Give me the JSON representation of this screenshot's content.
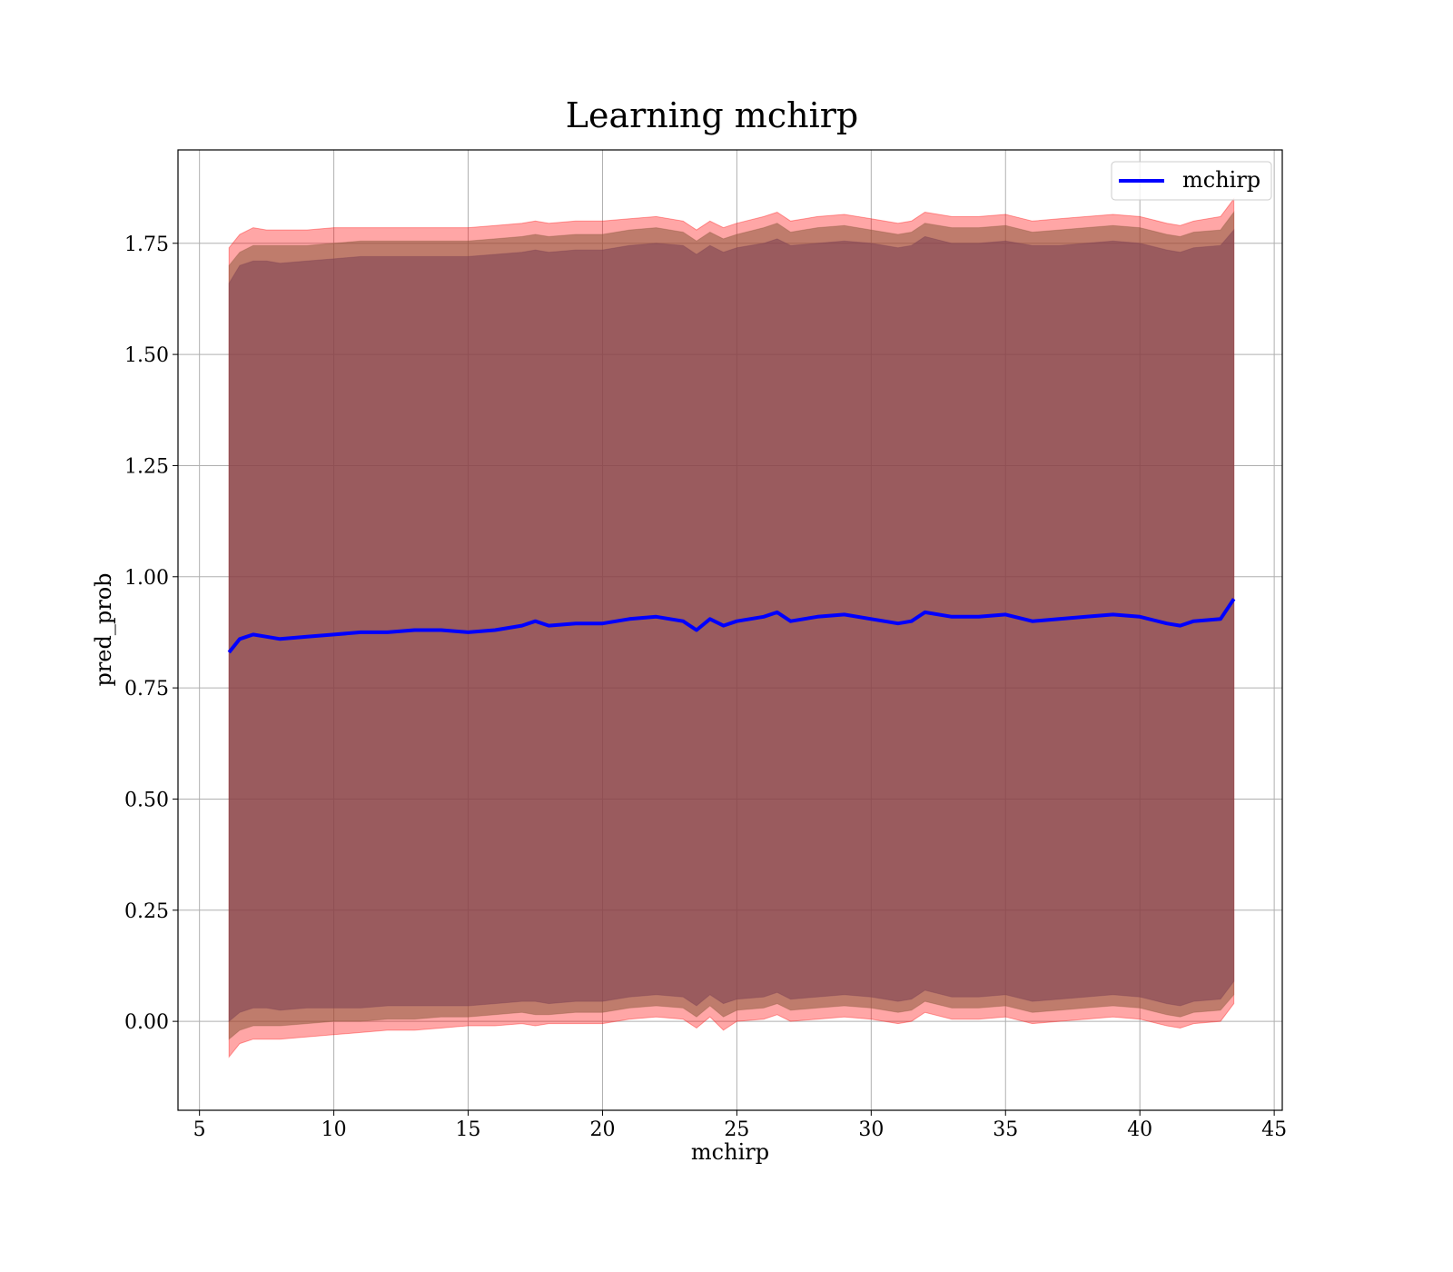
{
  "chart_data": {
    "type": "line",
    "title": "Learning mchirp",
    "xlabel": "mchirp",
    "ylabel": "pred_prob",
    "xlim": [
      4.2,
      45.3
    ],
    "ylim": [
      -0.2,
      1.96
    ],
    "xticks": [
      5,
      10,
      15,
      20,
      25,
      30,
      35,
      40,
      45
    ],
    "xtick_labels": [
      "5",
      "10",
      "15",
      "20",
      "25",
      "30",
      "35",
      "40",
      "45"
    ],
    "yticks": [
      0.0,
      0.25,
      0.5,
      0.75,
      1.0,
      1.25,
      1.5,
      1.75
    ],
    "ytick_labels": [
      "0.00",
      "0.25",
      "0.50",
      "0.75",
      "1.00",
      "1.25",
      "1.50",
      "1.75"
    ],
    "grid": true,
    "legend": {
      "position": "top-right",
      "entries": [
        "mchirp"
      ]
    },
    "colors": {
      "line": "#0000ff",
      "outer_band": "#ff0000",
      "inner_band": "#8b5a3c",
      "core_band": "#7b3f54"
    },
    "x": [
      6.1,
      6.5,
      7.0,
      7.5,
      8.0,
      9.0,
      10.0,
      11.0,
      12.0,
      13.0,
      14.0,
      15.0,
      16.0,
      17.0,
      17.5,
      18.0,
      19.0,
      20.0,
      21.0,
      22.0,
      23.0,
      23.5,
      24.0,
      24.5,
      25.0,
      26.0,
      26.5,
      27.0,
      28.0,
      29.0,
      30.0,
      31.0,
      31.5,
      32.0,
      33.0,
      34.0,
      35.0,
      36.0,
      37.0,
      38.0,
      39.0,
      40.0,
      41.0,
      41.5,
      42.0,
      43.0,
      43.5
    ],
    "series": [
      {
        "name": "mchirp",
        "values": [
          0.83,
          0.86,
          0.87,
          0.865,
          0.86,
          0.865,
          0.87,
          0.875,
          0.875,
          0.88,
          0.88,
          0.875,
          0.88,
          0.89,
          0.9,
          0.89,
          0.895,
          0.895,
          0.905,
          0.91,
          0.9,
          0.88,
          0.905,
          0.89,
          0.9,
          0.91,
          0.92,
          0.9,
          0.91,
          0.915,
          0.905,
          0.895,
          0.9,
          0.92,
          0.91,
          0.91,
          0.915,
          0.9,
          0.905,
          0.91,
          0.915,
          0.91,
          0.895,
          0.89,
          0.9,
          0.905,
          0.95
        ]
      }
    ],
    "bands": [
      {
        "lower": [
          -0.08,
          -0.05,
          -0.04,
          -0.04,
          -0.04,
          -0.035,
          -0.03,
          -0.025,
          -0.02,
          -0.02,
          -0.015,
          -0.01,
          -0.01,
          -0.005,
          -0.01,
          -0.005,
          -0.005,
          -0.005,
          0.005,
          0.01,
          0.005,
          -0.015,
          0.01,
          -0.02,
          0.0,
          0.005,
          0.015,
          0.0,
          0.005,
          0.01,
          0.005,
          -0.005,
          0.0,
          0.02,
          0.005,
          0.005,
          0.01,
          -0.005,
          0.0,
          0.005,
          0.01,
          0.005,
          -0.01,
          -0.015,
          -0.005,
          0.0,
          0.04
        ],
        "upper": [
          1.74,
          1.77,
          1.785,
          1.78,
          1.78,
          1.78,
          1.785,
          1.785,
          1.785,
          1.785,
          1.785,
          1.785,
          1.79,
          1.795,
          1.8,
          1.795,
          1.8,
          1.8,
          1.805,
          1.81,
          1.8,
          1.78,
          1.8,
          1.785,
          1.795,
          1.81,
          1.82,
          1.8,
          1.81,
          1.815,
          1.805,
          1.795,
          1.8,
          1.82,
          1.81,
          1.81,
          1.815,
          1.8,
          1.805,
          1.81,
          1.815,
          1.81,
          1.795,
          1.79,
          1.8,
          1.81,
          1.85
        ]
      },
      {
        "lower": [
          -0.04,
          -0.02,
          -0.01,
          -0.01,
          -0.01,
          -0.005,
          0.0,
          0.0,
          0.005,
          0.005,
          0.01,
          0.01,
          0.015,
          0.02,
          0.015,
          0.015,
          0.02,
          0.02,
          0.03,
          0.035,
          0.03,
          0.01,
          0.035,
          0.01,
          0.025,
          0.03,
          0.04,
          0.025,
          0.03,
          0.035,
          0.03,
          0.02,
          0.025,
          0.045,
          0.03,
          0.03,
          0.035,
          0.02,
          0.025,
          0.03,
          0.035,
          0.03,
          0.015,
          0.01,
          0.02,
          0.025,
          0.06
        ],
        "upper": [
          1.7,
          1.73,
          1.745,
          1.745,
          1.745,
          1.745,
          1.75,
          1.755,
          1.755,
          1.755,
          1.755,
          1.755,
          1.76,
          1.765,
          1.77,
          1.765,
          1.77,
          1.77,
          1.78,
          1.785,
          1.775,
          1.755,
          1.775,
          1.76,
          1.77,
          1.785,
          1.795,
          1.775,
          1.785,
          1.79,
          1.78,
          1.77,
          1.775,
          1.795,
          1.785,
          1.785,
          1.79,
          1.775,
          1.78,
          1.785,
          1.79,
          1.785,
          1.77,
          1.765,
          1.775,
          1.78,
          1.82
        ]
      },
      {
        "lower": [
          0.0,
          0.02,
          0.03,
          0.03,
          0.025,
          0.03,
          0.03,
          0.03,
          0.035,
          0.035,
          0.035,
          0.035,
          0.04,
          0.045,
          0.045,
          0.04,
          0.045,
          0.045,
          0.055,
          0.06,
          0.055,
          0.035,
          0.06,
          0.04,
          0.05,
          0.055,
          0.065,
          0.05,
          0.055,
          0.06,
          0.055,
          0.045,
          0.05,
          0.07,
          0.055,
          0.055,
          0.06,
          0.045,
          0.05,
          0.055,
          0.06,
          0.055,
          0.04,
          0.035,
          0.045,
          0.05,
          0.09
        ],
        "upper": [
          1.66,
          1.7,
          1.71,
          1.71,
          1.705,
          1.71,
          1.715,
          1.72,
          1.72,
          1.72,
          1.72,
          1.72,
          1.725,
          1.73,
          1.735,
          1.73,
          1.735,
          1.735,
          1.745,
          1.75,
          1.745,
          1.725,
          1.745,
          1.73,
          1.74,
          1.75,
          1.76,
          1.745,
          1.75,
          1.755,
          1.75,
          1.74,
          1.745,
          1.765,
          1.75,
          1.75,
          1.755,
          1.745,
          1.745,
          1.75,
          1.755,
          1.75,
          1.735,
          1.73,
          1.74,
          1.745,
          1.78
        ]
      }
    ]
  }
}
